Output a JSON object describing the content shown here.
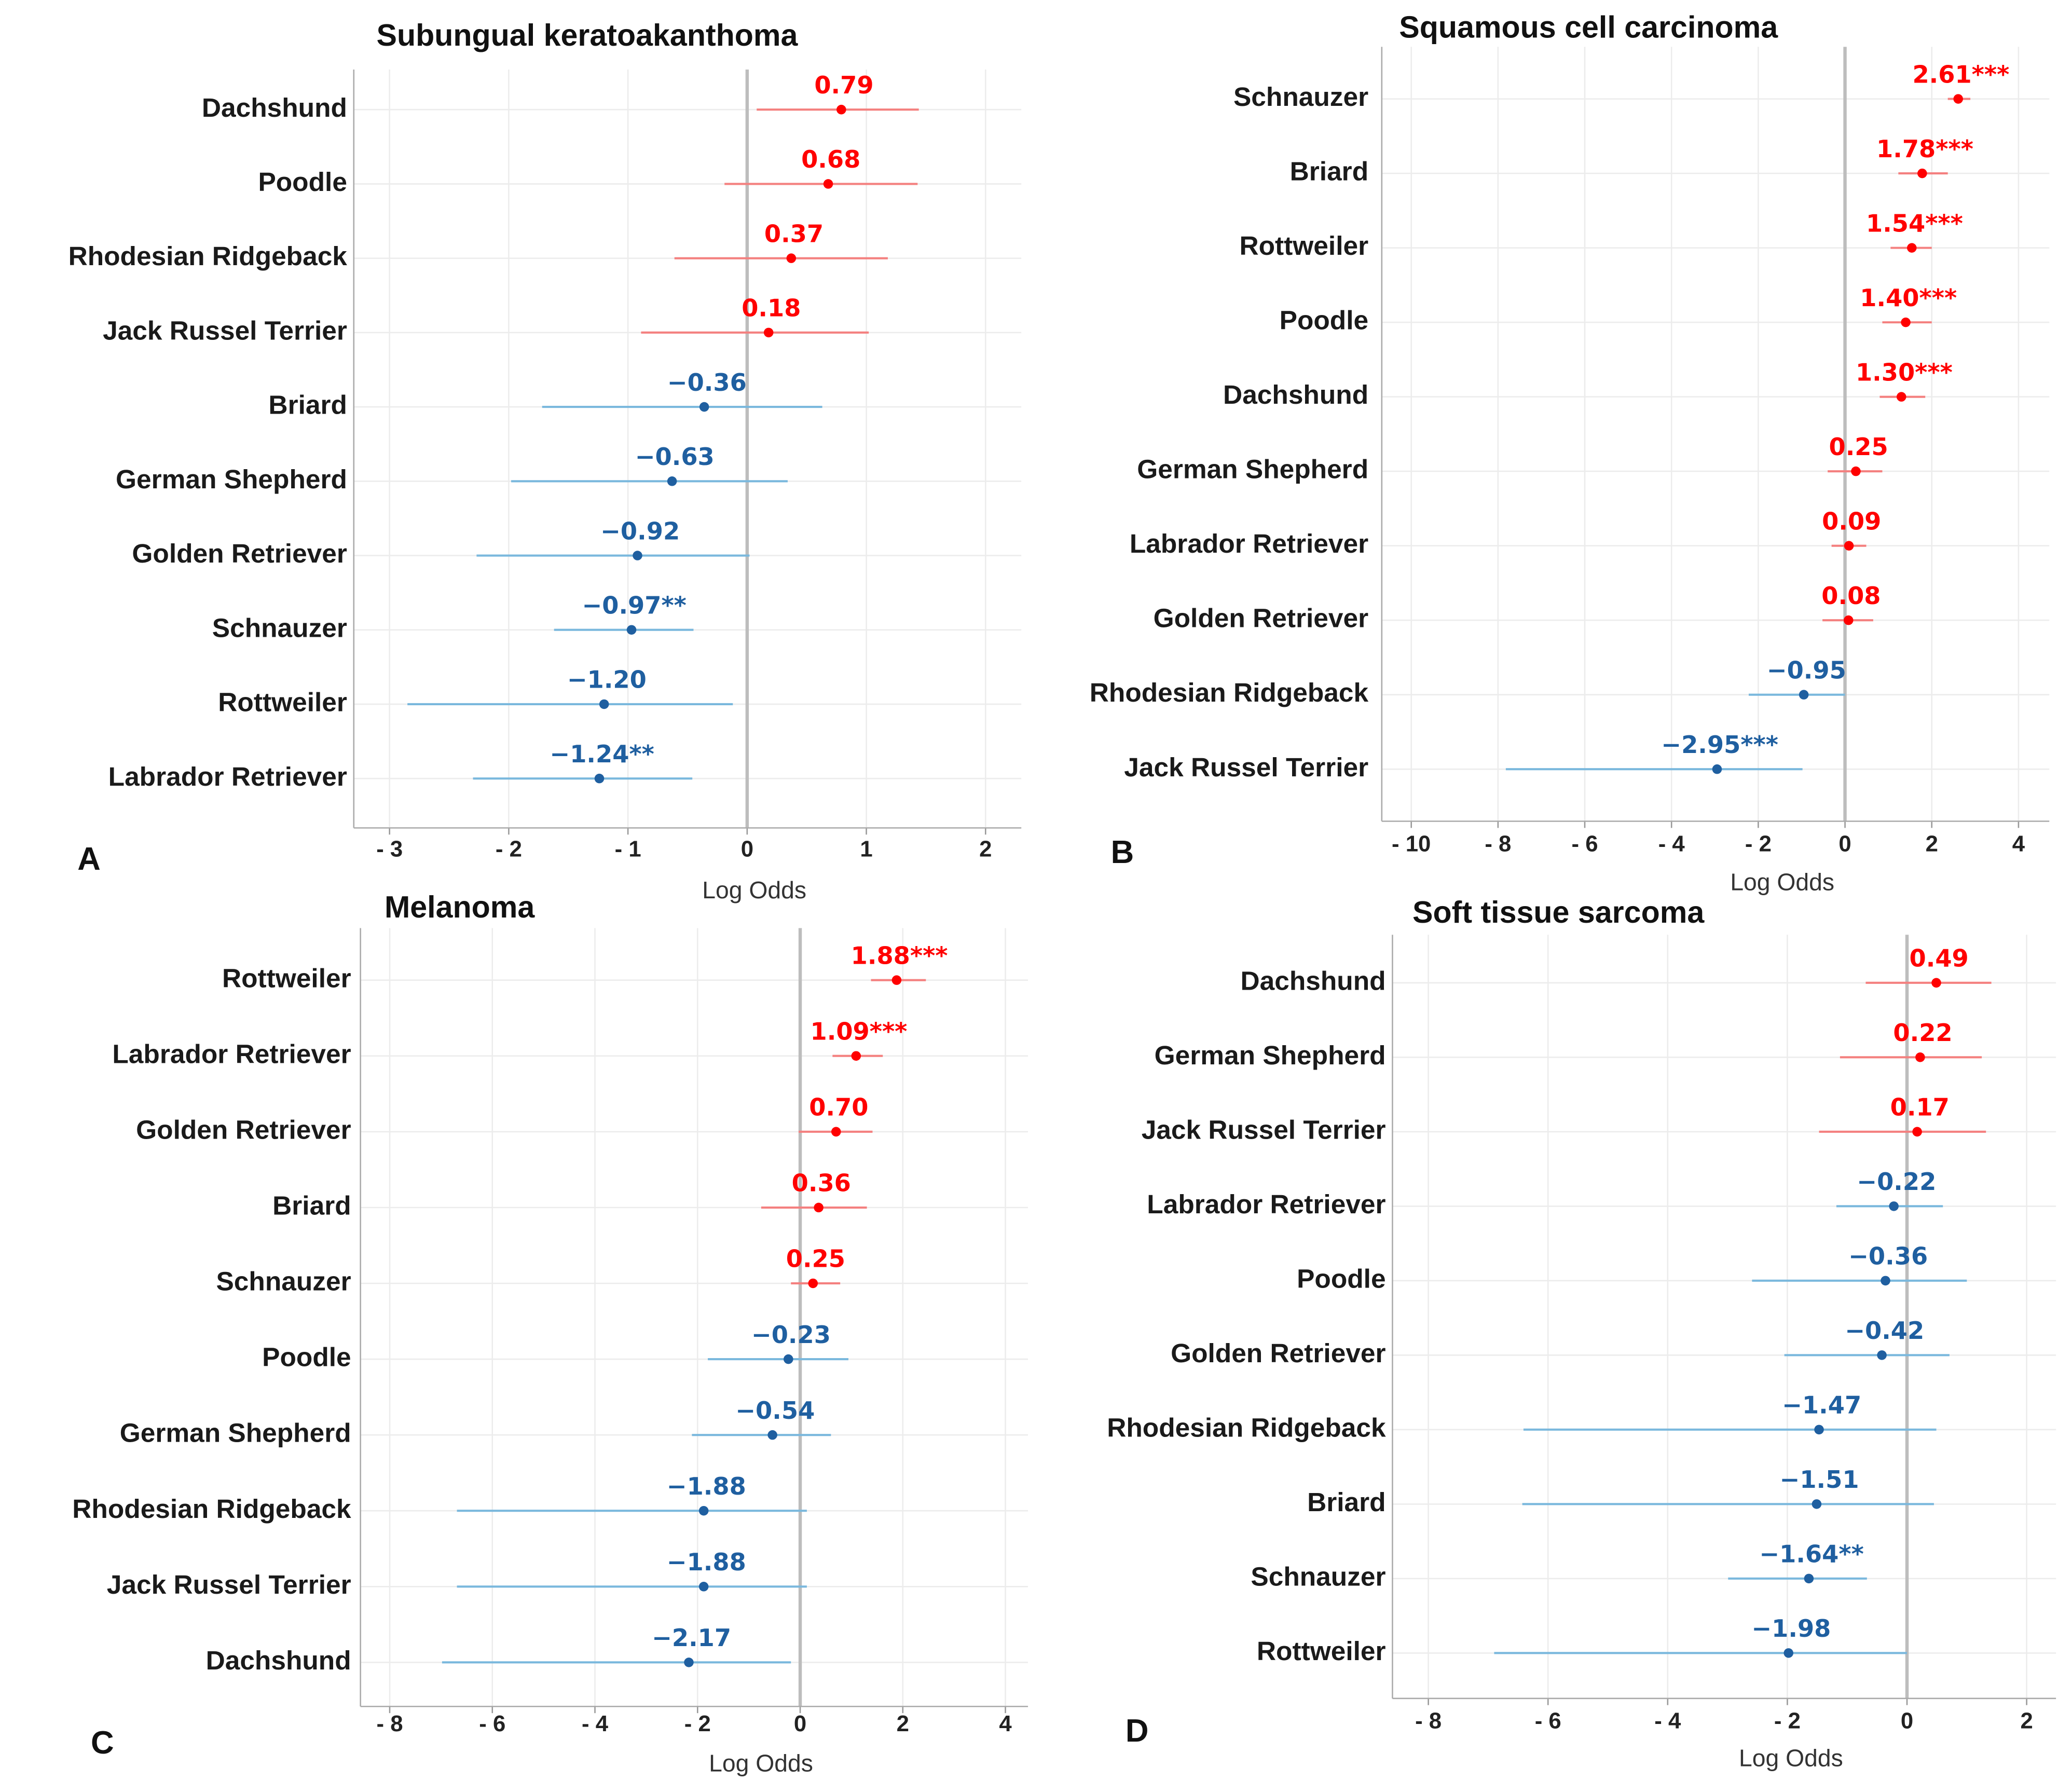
{
  "chart_data": [
    {
      "type": "forest",
      "title": "Subungual keratoakanthoma",
      "panel_label": "A",
      "x_label": "Log Odds",
      "categories": [
        "Dachshund",
        "Poodle",
        "Rhodesian Ridgeback",
        "Jack Russel Terrier",
        "Briard",
        "German Shepherd",
        "Golden Retriever",
        "Schnauzer",
        "Rottweiler",
        "Labrador Retriever"
      ],
      "values": [
        0.79,
        0.68,
        0.37,
        0.18,
        -0.36,
        -0.63,
        -0.92,
        -0.97,
        -1.2,
        -1.24
      ],
      "value_labels": [
        "0.79",
        "0.68",
        "0.37",
        "0.18",
        "−0.36",
        "−0.63",
        "−0.92",
        "−0.97**",
        "−1.20",
        "−1.24**"
      ],
      "ci_low": [
        0.08,
        -0.19,
        -0.61,
        -0.89,
        -1.72,
        -1.98,
        -2.27,
        -1.62,
        -2.85,
        -2.3
      ],
      "ci_high": [
        1.44,
        1.43,
        1.18,
        1.02,
        0.63,
        0.34,
        0.02,
        -0.45,
        -0.12,
        -0.46
      ],
      "xlim": [
        -3.3,
        2.3
      ],
      "xticks": [
        {
          "value": -3,
          "label": "- 3"
        },
        {
          "value": -2,
          "label": "- 2"
        },
        {
          "value": -1,
          "label": "- 1"
        },
        0,
        1,
        2
      ],
      "grid": true,
      "colors": {
        "positive": "#ff0000",
        "negative": "#1f5fa0",
        "positive_ci": "#f4807f",
        "negative_ci": "#7ab8dd"
      }
    },
    {
      "type": "forest",
      "title": "Squamous cell carcinoma",
      "panel_label": "B",
      "x_label": "Log Odds",
      "categories": [
        "Schnauzer",
        "Briard",
        "Rottweiler",
        "Poodle",
        "Dachshund",
        "German Shepherd",
        "Labrador Retriever",
        "Golden Retriever",
        "Rhodesian Ridgeback",
        "Jack Russel Terrier"
      ],
      "values": [
        2.61,
        1.78,
        1.54,
        1.4,
        1.3,
        0.25,
        0.09,
        0.08,
        -0.95,
        -2.95
      ],
      "value_labels": [
        "2.61***",
        "1.78***",
        "1.54***",
        "1.40***",
        "1.30***",
        "0.25",
        "0.09",
        "0.08",
        "−0.95",
        "−2.95***"
      ],
      "ci_low": [
        2.37,
        1.23,
        1.05,
        0.86,
        0.8,
        -0.4,
        -0.31,
        -0.52,
        -2.22,
        -7.82
      ],
      "ci_high": [
        2.89,
        2.37,
        2.0,
        2.0,
        1.85,
        0.86,
        0.49,
        0.65,
        0.0,
        -0.98
      ],
      "xlim": [
        -10.68,
        4.71
      ],
      "xticks": [
        {
          "value": -10,
          "label": "- 10"
        },
        {
          "value": -8,
          "label": "- 8"
        },
        {
          "value": -6,
          "label": "- 6"
        },
        {
          "value": -4,
          "label": "- 4"
        },
        {
          "value": -2,
          "label": "- 2"
        },
        0,
        2,
        4
      ],
      "grid": true,
      "colors": {
        "positive": "#ff0000",
        "negative": "#1f5fa0",
        "positive_ci": "#f4807f",
        "negative_ci": "#7ab8dd"
      }
    },
    {
      "type": "forest",
      "title": "Melanoma",
      "panel_label": "C",
      "x_label": "Log Odds",
      "categories": [
        "Rottweiler",
        "Labrador Retriever",
        "Golden Retriever",
        "Briard",
        "Schnauzer",
        "Poodle",
        "German Shepherd",
        "Rhodesian Ridgeback",
        "Jack Russel Terrier",
        "Dachshund"
      ],
      "values": [
        1.88,
        1.09,
        0.7,
        0.36,
        0.25,
        -0.23,
        -0.54,
        -1.88,
        -1.88,
        -2.17
      ],
      "value_labels": [
        "1.88***",
        "1.09***",
        "0.70",
        "0.36",
        "0.25",
        "−0.23",
        "−0.54",
        "−1.88",
        "−1.88",
        "−2.17"
      ],
      "ci_low": [
        1.38,
        0.63,
        -0.03,
        -0.76,
        -0.18,
        -1.8,
        -2.11,
        -6.69,
        -6.69,
        -6.98
      ],
      "ci_high": [
        2.45,
        1.61,
        1.41,
        1.3,
        0.78,
        0.94,
        0.6,
        0.13,
        0.13,
        -0.18
      ],
      "xlim": [
        -8.57,
        4.44
      ],
      "xticks": [
        {
          "value": -8,
          "label": "- 8"
        },
        {
          "value": -6,
          "label": "- 6"
        },
        {
          "value": -4,
          "label": "- 4"
        },
        {
          "value": -2,
          "label": "- 2"
        },
        0,
        2,
        4
      ],
      "grid": true,
      "colors": {
        "positive": "#ff0000",
        "negative": "#1f5fa0",
        "positive_ci": "#f4807f",
        "negative_ci": "#7ab8dd"
      }
    },
    {
      "type": "forest",
      "title": "Soft tissue sarcoma",
      "panel_label": "D",
      "x_label": "Log Odds",
      "categories": [
        "Dachshund",
        "German Shepherd",
        "Jack Russel Terrier",
        "Labrador Retriever",
        "Poodle",
        "Golden Retriever",
        "Rhodesian Ridgeback",
        "Briard",
        "Schnauzer",
        "Rottweiler"
      ],
      "values": [
        0.49,
        0.22,
        0.17,
        -0.22,
        -0.36,
        -0.42,
        -1.47,
        -1.51,
        -1.64,
        -1.98
      ],
      "value_labels": [
        "0.49",
        "0.22",
        "0.17",
        "−0.22",
        "−0.36",
        "−0.42",
        "−1.47",
        "−1.51",
        "−1.64**",
        "−1.98"
      ],
      "ci_low": [
        -0.69,
        -1.12,
        -1.47,
        -1.18,
        -2.59,
        -2.05,
        -6.41,
        -6.43,
        -2.99,
        -6.9
      ],
      "ci_high": [
        1.41,
        1.25,
        1.32,
        0.6,
        1.0,
        0.71,
        0.49,
        0.45,
        -0.67,
        0.0
      ],
      "xlim": [
        -8.6,
        2.49
      ],
      "xticks": [
        {
          "value": -8,
          "label": "- 8"
        },
        {
          "value": -6,
          "label": "- 6"
        },
        {
          "value": -4,
          "label": "- 4"
        },
        {
          "value": -2,
          "label": "- 2"
        },
        0,
        2
      ],
      "grid": true,
      "colors": {
        "positive": "#ff0000",
        "negative": "#1f5fa0",
        "positive_ci": "#f4807f",
        "negative_ci": "#7ab8dd"
      }
    }
  ]
}
